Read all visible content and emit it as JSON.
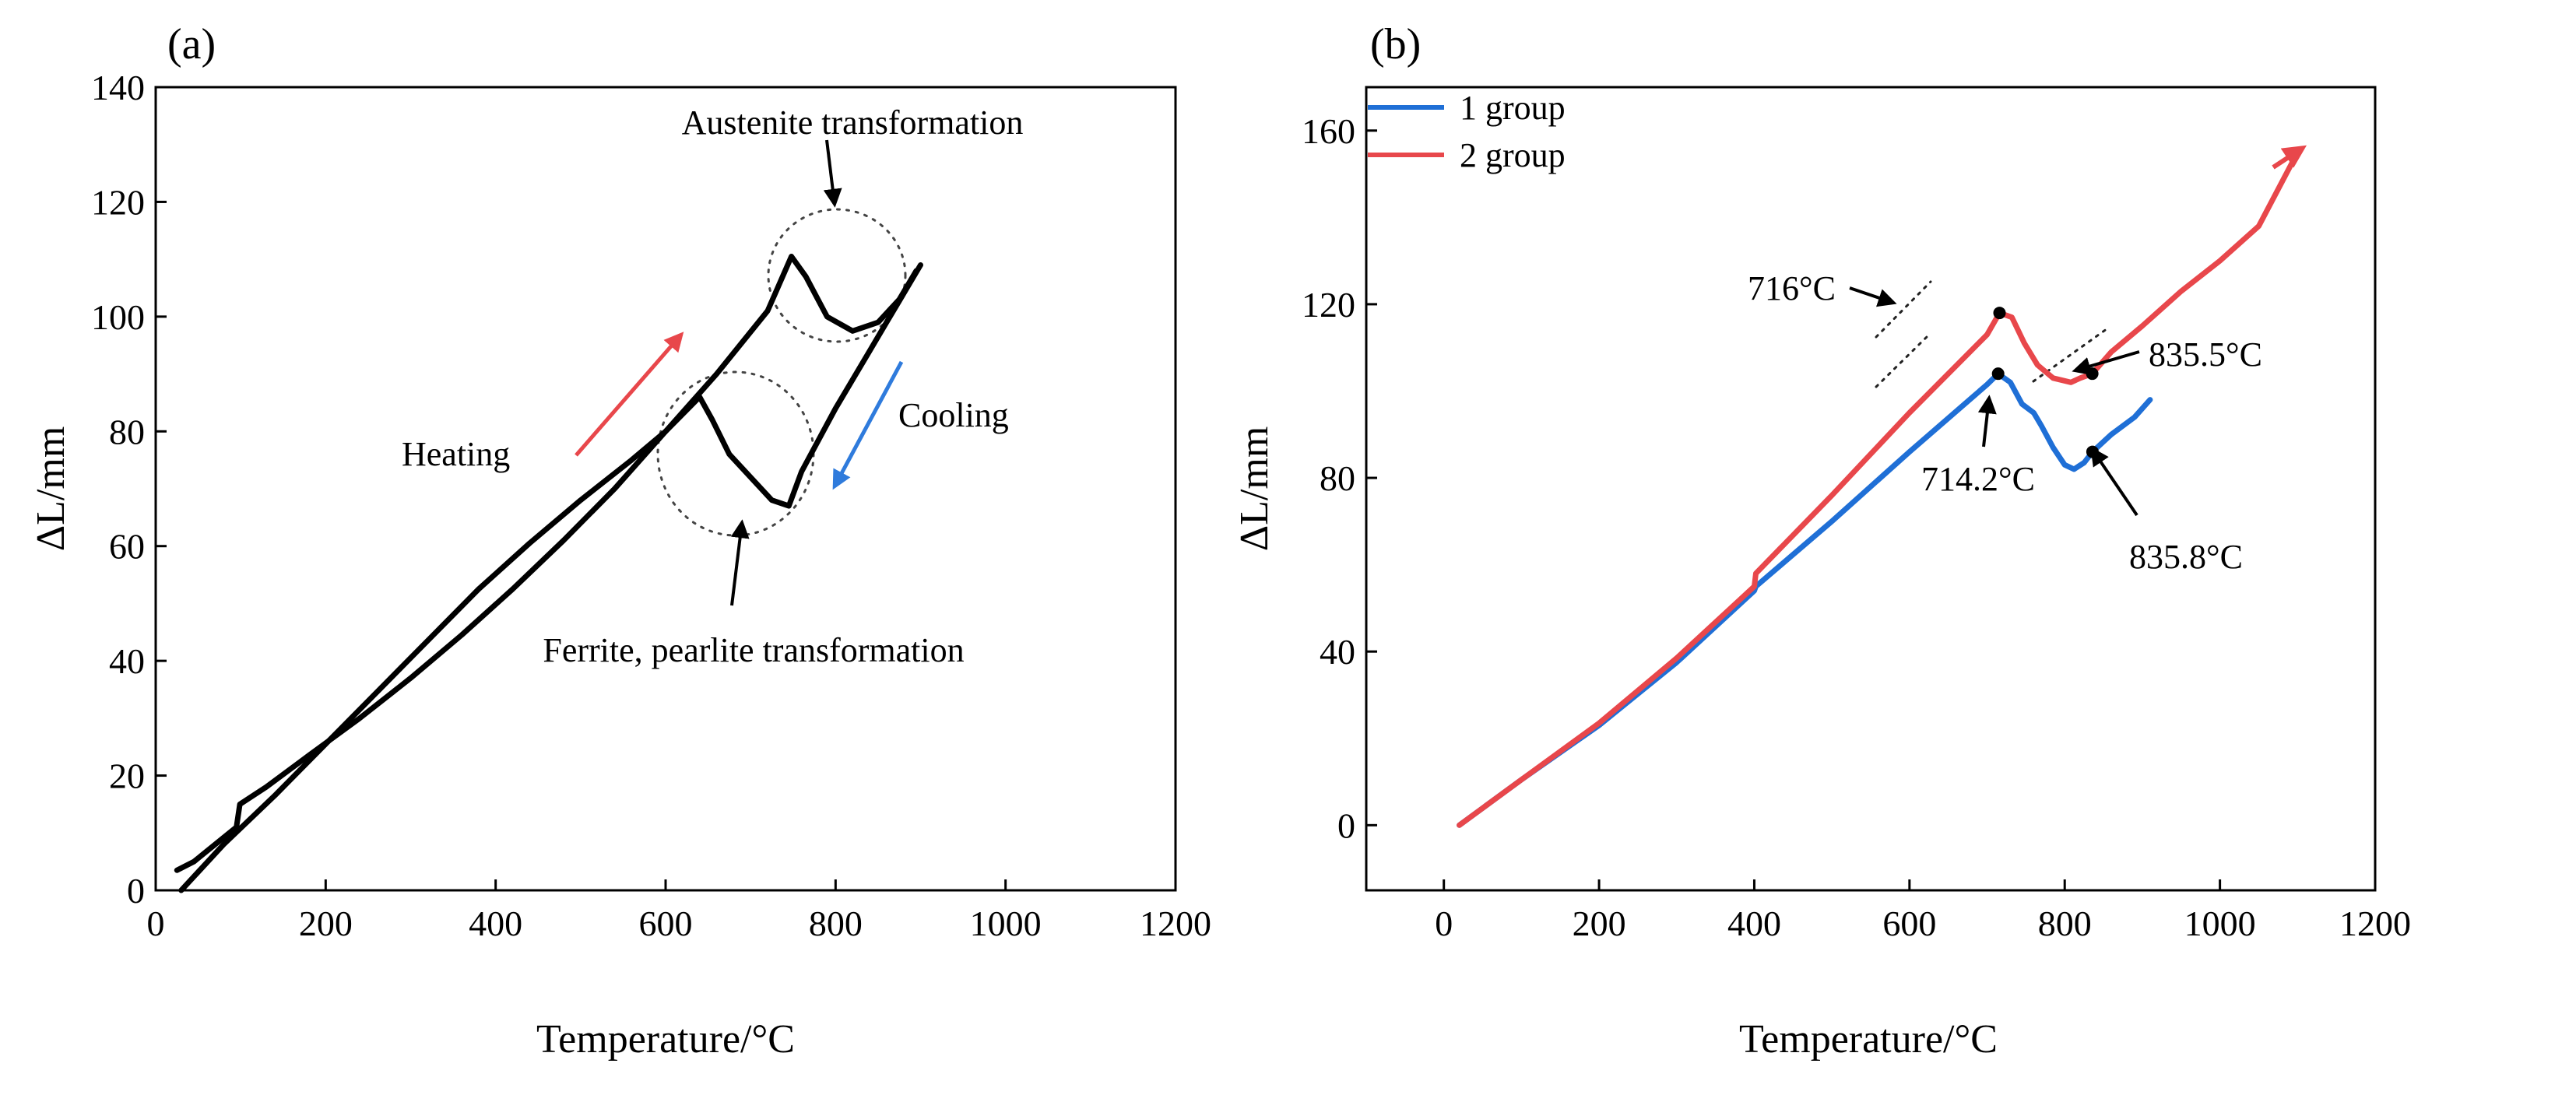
{
  "chart_data": [
    {
      "type": "line",
      "panel": "(a)",
      "xlabel": "Temperature/°C",
      "ylabel": "ΔL/mm",
      "xlim": [
        0,
        1200
      ],
      "ylim": [
        0,
        140
      ],
      "xticks": [
        0,
        200,
        400,
        600,
        800,
        1000,
        1200
      ],
      "yticks": [
        0,
        20,
        40,
        60,
        80,
        100,
        120,
        140
      ],
      "series": [
        {
          "name": "Heating",
          "color": "#000000",
          "points": [
            [
              25,
              3.5
            ],
            [
              45,
              5
            ],
            [
              70,
              8
            ],
            [
              95,
              11
            ],
            [
              99,
              15
            ],
            [
              130,
              18
            ],
            [
              180,
              23.5
            ],
            [
              240,
              30
            ],
            [
              300,
              37
            ],
            [
              360,
              44.5
            ],
            [
              420,
              52.5
            ],
            [
              480,
              61
            ],
            [
              540,
              70
            ],
            [
              600,
              80
            ],
            [
              660,
              90
            ],
            [
              720,
              101
            ],
            [
              748,
              110.5
            ],
            [
              765,
              107
            ],
            [
              790,
              100
            ],
            [
              820,
              97.5
            ],
            [
              850,
              99
            ],
            [
              875,
              103
            ],
            [
              895,
              108
            ]
          ]
        },
        {
          "name": "Cooling",
          "color": "#000000",
          "points": [
            [
              900,
              109
            ],
            [
              880,
              104
            ],
            [
              860,
              99
            ],
            [
              840,
              94
            ],
            [
              820,
              89
            ],
            [
              800,
              84
            ],
            [
              780,
              78.5
            ],
            [
              760,
              73
            ],
            [
              745,
              67
            ],
            [
              725,
              68
            ],
            [
              700,
              72
            ],
            [
              675,
              76
            ],
            [
              655,
              82
            ],
            [
              640,
              86
            ],
            [
              600,
              80
            ],
            [
              560,
              75
            ],
            [
              500,
              68
            ],
            [
              440,
              60.5
            ],
            [
              380,
              52.5
            ],
            [
              320,
              43.5
            ],
            [
              260,
              34.5
            ],
            [
              200,
              25.5
            ],
            [
              140,
              16.5
            ],
            [
              80,
              8
            ],
            [
              30,
              0
            ]
          ]
        }
      ],
      "annotations": [
        {
          "text": "Austenite transformation",
          "x": 810,
          "y": 128
        },
        {
          "text": "Ferrite, pearlite transformation",
          "x": 700,
          "y": 40
        },
        {
          "text": "Heating",
          "x": 450,
          "y": 76
        },
        {
          "text": "Cooling",
          "x": 960,
          "y": 83
        }
      ]
    },
    {
      "type": "line",
      "panel": "(b)",
      "xlabel": "Temperature/°C",
      "ylabel": "ΔL/mm",
      "xlim": [
        -100,
        1200
      ],
      "ylim": [
        -15,
        170
      ],
      "xticks": [
        0,
        200,
        400,
        600,
        800,
        1000,
        1200
      ],
      "yticks": [
        0,
        40,
        80,
        120,
        160
      ],
      "legend": "top-left",
      "series": [
        {
          "name": "1 group",
          "color": "#1f6fd6",
          "points": [
            [
              20,
              0
            ],
            [
              100,
              10.5
            ],
            [
              200,
              23
            ],
            [
              300,
              37.5
            ],
            [
              400,
              54
            ],
            [
              402,
              55
            ],
            [
              500,
              70
            ],
            [
              600,
              86
            ],
            [
              700,
              101.5
            ],
            [
              714.2,
              104
            ],
            [
              730,
              102
            ],
            [
              745,
              97
            ],
            [
              760,
              95
            ],
            [
              770,
              92
            ],
            [
              785,
              87
            ],
            [
              800,
              83
            ],
            [
              812,
              82
            ],
            [
              825,
              83.5
            ],
            [
              835.8,
              86
            ],
            [
              860,
              90
            ],
            [
              890,
              94
            ],
            [
              910,
              98
            ]
          ]
        },
        {
          "name": "2 group",
          "color": "#e8474b",
          "points": [
            [
              20,
              0
            ],
            [
              100,
              10.5
            ],
            [
              200,
              23.5
            ],
            [
              300,
              38.5
            ],
            [
              400,
              55
            ],
            [
              402,
              58
            ],
            [
              500,
              76
            ],
            [
              600,
              95
            ],
            [
              700,
              113
            ],
            [
              716,
              118
            ],
            [
              732,
              117
            ],
            [
              748,
              111
            ],
            [
              765,
              106
            ],
            [
              785,
              103
            ],
            [
              808,
              102
            ],
            [
              820,
              103
            ],
            [
              835.5,
              104
            ],
            [
              860,
              109
            ],
            [
              900,
              115
            ],
            [
              950,
              123
            ],
            [
              1000,
              130
            ],
            [
              1050,
              138
            ],
            [
              1100,
              155
            ]
          ]
        }
      ],
      "annotations": [
        {
          "text": "716°C",
          "x": 716,
          "y": 118
        },
        {
          "text": "714.2°C",
          "x": 714.2,
          "y": 104
        },
        {
          "text": "835.5°C",
          "x": 835.5,
          "y": 104
        },
        {
          "text": "835.8°C",
          "x": 835.8,
          "y": 86
        }
      ]
    }
  ]
}
